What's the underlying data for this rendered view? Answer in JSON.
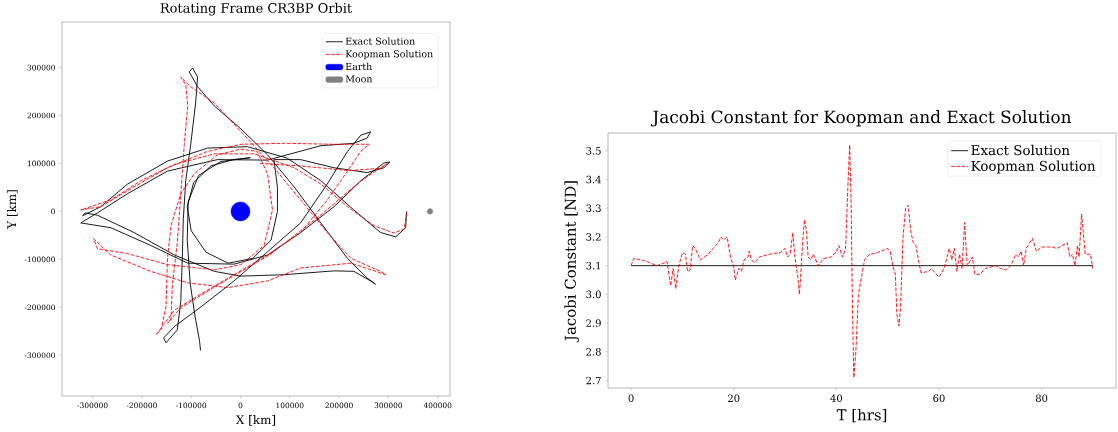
{
  "chart_data": [
    {
      "type": "line",
      "title": "Rotating Frame CR3BP Orbit",
      "xlabel": "X [km]",
      "ylabel": "Y [km]",
      "legend": "top right",
      "xlim": [
        -362000,
        425000
      ],
      "ylim": [
        -385000,
        395000
      ],
      "xticks": [
        -300000,
        -200000,
        -100000,
        0,
        100000,
        200000,
        300000,
        400000
      ],
      "yticks": [
        -300000,
        -200000,
        -100000,
        0,
        100000,
        200000,
        300000
      ],
      "series": [
        {
          "name": "Exact Solution",
          "color": "#000000",
          "line_style": "solid",
          "x": [
            337000,
            335000,
            315000,
            284000,
            230000,
            163000,
            95000,
            14000,
            -67000,
            -148000,
            -229000,
            -283000,
            -320000,
            -315000,
            -290000,
            -216000,
            -134000,
            -53000,
            1000,
            89000,
            190000,
            230000,
            264000,
            274000,
            257000,
            217000,
            163000,
            109000,
            55000,
            1000,
            -53000,
            -87000,
            -104000,
            -97000,
            -87000,
            -91000,
            -101000,
            -111000,
            -116000,
            -118000,
            -121000,
            -128000,
            -151000,
            -156000,
            -134000,
            -80000,
            -13000,
            55000,
            122000,
            176000,
            217000,
            244000,
            264000,
            257000,
            230000,
            163000,
            55000,
            -47000,
            -148000,
            -229000,
            -290000,
            -324000,
            -263000,
            -182000,
            -107000,
            -13000,
            55000,
            122000,
            190000,
            244000,
            291000,
            303000,
            291000,
            257000,
            190000,
            122000,
            68000,
            75000,
            75000,
            62000,
            25000,
            -25000,
            -70000,
            -100000,
            -108000,
            -95000,
            -60000,
            -15000,
            20000,
            -40000,
            -85000,
            -106000,
            -108000,
            -102000,
            -92000,
            -83000,
            -81000
          ],
          "values": [
            0,
            -34000,
            -53000,
            -44000,
            3000,
            64000,
            111000,
            135000,
            132000,
            105000,
            57000,
            10000,
            -9000,
            -3000,
            -8000,
            -44000,
            -91000,
            -125000,
            -135000,
            -132000,
            -124000,
            -125000,
            -145000,
            -152000,
            -139000,
            -98000,
            -24000,
            51000,
            118000,
            172000,
            220000,
            260000,
            291000,
            299000,
            280000,
            226000,
            139000,
            64000,
            -17000,
            -98000,
            -186000,
            -247000,
            -274000,
            -264000,
            -240000,
            -199000,
            -145000,
            -84000,
            -24000,
            57000,
            125000,
            159000,
            166000,
            153000,
            142000,
            137000,
            107000,
            108000,
            84000,
            37000,
            -3000,
            -24000,
            -34000,
            -71000,
            -108000,
            -110000,
            -91000,
            -44000,
            10000,
            64000,
            101000,
            103000,
            91000,
            81000,
            91000,
            108000,
            108000,
            50000,
            0,
            -60000,
            -98000,
            -108000,
            -85000,
            -40000,
            10000,
            60000,
            95000,
            108000,
            112000,
            104000,
            75000,
            20000,
            -60000,
            -150000,
            -220000,
            -270000,
            -290000
          ]
        },
        {
          "name": "Koopman Solution",
          "color": "#ff0000",
          "line_style": "dashed",
          "x": [
            337000,
            332000,
            311000,
            271000,
            217000,
            163000,
            109000,
            28000,
            -53000,
            -134000,
            -202000,
            -263000,
            -324000,
            -283000,
            -216000,
            -148000,
            -67000,
            1000,
            89000,
            190000,
            261000,
            244000,
            217000,
            176000,
            122000,
            55000,
            -13000,
            -80000,
            -134000,
            -168000,
            -172000,
            -161000,
            -151000,
            -148000,
            -141000,
            -121000,
            -94000,
            -47000,
            1000,
            34000,
            55000,
            65000,
            48000,
            1000,
            -53000,
            -148000,
            -229000,
            -290000,
            -298000,
            -263000,
            -182000,
            -107000,
            -26000,
            55000,
            122000,
            224000,
            295000,
            284000,
            224000,
            176000,
            122000,
            68000,
            14000,
            -53000,
            -101000,
            -118000,
            -121000,
            -111000,
            -107000,
            -114000,
            -121000,
            -128000,
            -138000,
            -141000,
            -148000,
            -120000,
            -40000,
            60000,
            160000,
            240000,
            290000,
            298000,
            285000,
            220000,
            120000,
            40000
          ],
          "values": [
            -3000,
            -37000,
            -45000,
            -30000,
            10000,
            57000,
            91000,
            120000,
            120000,
            98000,
            64000,
            24000,
            3000,
            10000,
            51000,
            91000,
            125000,
            140000,
            142000,
            140000,
            140000,
            125000,
            84000,
            24000,
            -44000,
            -91000,
            -132000,
            -172000,
            -206000,
            -253000,
            -257000,
            -247000,
            -199000,
            -98000,
            -30000,
            37000,
            78000,
            118000,
            130000,
            125000,
            78000,
            3000,
            -71000,
            -111000,
            -122000,
            -111000,
            -88000,
            -78000,
            -57000,
            -91000,
            -125000,
            -149000,
            -159000,
            -145000,
            -118000,
            -108000,
            -132000,
            -125000,
            -98000,
            -44000,
            24000,
            91000,
            152000,
            226000,
            260000,
            277000,
            280000,
            264000,
            220000,
            139000,
            37000,
            -64000,
            -152000,
            -226000,
            -233000,
            -200000,
            -150000,
            -90000,
            -10000,
            60000,
            95000,
            100000,
            90000,
            85000,
            95000,
            100000
          ]
        },
        {
          "name": "Earth",
          "type": "scatter",
          "color": "#0000ff",
          "marker": "circle",
          "x": [
            0
          ],
          "values": [
            0
          ]
        },
        {
          "name": "Moon",
          "type": "scatter",
          "color": "#808080",
          "marker": "circle",
          "x": [
            384400
          ],
          "values": [
            0
          ]
        }
      ]
    },
    {
      "type": "line",
      "title": "Jacobi Constant for Koopman and Exact Solution",
      "xlabel": "T [hrs]",
      "ylabel": "Jacobi Constant [ND]",
      "legend": "top right",
      "xlim": [
        -4.5,
        94.5
      ],
      "ylim": [
        2.674,
        3.562
      ],
      "xticks": [
        0,
        20,
        40,
        60,
        80
      ],
      "yticks": [
        2.7,
        2.8,
        2.9,
        {
          "value": 3,
          "label": "3.0"
        },
        3.1,
        3.2,
        3.3,
        3.4,
        3.5
      ],
      "series": [
        {
          "name": "Exact Solution",
          "color": "#000000",
          "line_style": "solid",
          "x": [
            0,
            90
          ],
          "values": [
            3.1,
            3.1
          ]
        },
        {
          "name": "Koopman Solution",
          "color": "#ff0000",
          "line_style": "dashed",
          "x": [
            0,
            0.5,
            2,
            3,
            5,
            6.5,
            7,
            7.7,
            8.2,
            8.7,
            9.3,
            10,
            10.6,
            11,
            11.5,
            12,
            12.5,
            13.5,
            15,
            16,
            17,
            17.5,
            18,
            18.7,
            19.5,
            20,
            20.3,
            21,
            21.5,
            22,
            22.8,
            23,
            23.5,
            24,
            25,
            27,
            29,
            30,
            30.5,
            31,
            31.5,
            32,
            32.5,
            32.8,
            33,
            33.5,
            33.8,
            34.2,
            34.5,
            35,
            35.5,
            36.5,
            37.5,
            39,
            40,
            40.5,
            41.2,
            41.8,
            42.3,
            42.6,
            42.9,
            43.1,
            43.4,
            43.8,
            44.3,
            45,
            45.5,
            46.5,
            48,
            50,
            50.5,
            51,
            51.5,
            51.8,
            52.2,
            52.5,
            53,
            53.5,
            54,
            54.5,
            55,
            55.5,
            56,
            56.5,
            58,
            58.5,
            60,
            61,
            62,
            62.5,
            63,
            63.5,
            64,
            64.5,
            65,
            65.5,
            66.5,
            67,
            68,
            69,
            71,
            72,
            73,
            74,
            75,
            75.5,
            76,
            76.5,
            77,
            78.2,
            79,
            80,
            82,
            83,
            85,
            85.5,
            86,
            86.5,
            87,
            87.3,
            87.8,
            88.5,
            89.5,
            90
          ],
          "values": [
            3.1,
            3.125,
            3.12,
            3.115,
            3.1,
            3.11,
            3.115,
            3.03,
            3.09,
            3.02,
            3.1,
            3.145,
            3.14,
            3.08,
            3.085,
            3.17,
            3.16,
            3.12,
            3.14,
            3.16,
            3.18,
            3.2,
            3.19,
            3.2,
            3.12,
            3.1,
            3.05,
            3.09,
            3.08,
            3.12,
            3.13,
            3.15,
            3.12,
            3.11,
            3.13,
            3.14,
            3.145,
            3.16,
            3.13,
            3.14,
            3.215,
            3.12,
            3.06,
            3.0,
            3.05,
            3.2,
            3.26,
            3.22,
            3.13,
            3.12,
            3.14,
            3.1,
            3.125,
            3.13,
            3.15,
            3.17,
            3.13,
            3.16,
            3.4,
            3.52,
            3.3,
            3.0,
            2.71,
            2.8,
            3.0,
            3.07,
            3.12,
            3.14,
            3.145,
            3.16,
            3.15,
            3.1,
            3.07,
            2.93,
            2.89,
            2.95,
            3.2,
            3.3,
            3.31,
            3.22,
            3.18,
            3.17,
            3.12,
            3.075,
            3.08,
            3.09,
            3.06,
            3.09,
            3.16,
            3.12,
            3.16,
            3.08,
            3.14,
            3.09,
            3.25,
            3.1,
            3.13,
            3.07,
            3.07,
            3.09,
            3.1,
            3.09,
            3.085,
            3.1,
            3.14,
            3.13,
            3.15,
            3.1,
            3.16,
            3.195,
            3.15,
            3.165,
            3.165,
            3.16,
            3.18,
            3.13,
            3.14,
            3.1,
            3.17,
            3.13,
            3.28,
            3.14,
            3.14,
            3.09
          ]
        }
      ]
    }
  ]
}
